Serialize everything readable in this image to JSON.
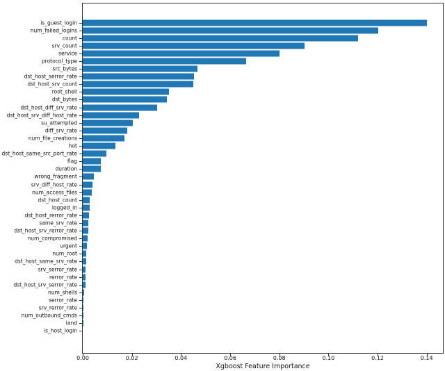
{
  "figure": {
    "background": "#ffffff",
    "bar_color": "#1f77b4",
    "axis_color": "#333333"
  },
  "chart_data": {
    "type": "bar",
    "orientation": "horizontal",
    "title": "",
    "xlabel": "Xgboost Feature Importance",
    "ylabel": "",
    "legend": null,
    "grid": false,
    "xlim": [
      0,
      0.1466
    ],
    "xticks": [
      {
        "label": "0.00",
        "value": 0.0
      },
      {
        "label": "0.02",
        "value": 0.02
      },
      {
        "label": "0.04",
        "value": 0.04
      },
      {
        "label": "0.06",
        "value": 0.06
      },
      {
        "label": "0.08",
        "value": 0.08
      },
      {
        "label": "0.10",
        "value": 0.1
      },
      {
        "label": "0.12",
        "value": 0.12
      },
      {
        "label": "0.14",
        "value": 0.14
      }
    ],
    "categories": [
      "is_guest_login",
      "num_failed_logins",
      "count",
      "srv_count",
      "service",
      "protocol_type",
      "src_bytes",
      "dst_host_serror_rate",
      "dst_host_srv_count",
      "root_shell",
      "dst_bytes",
      "dst_host_diff_srv_rate",
      "dst_host_srv_diff_host_rate",
      "su_attempted",
      "diff_srv_rate",
      "num_file_creations",
      "hot",
      "dst_host_same_src_port_rate",
      "flag",
      "duration",
      "wrong_fragment",
      "srv_diff_host_rate",
      "num_access_files",
      "dst_host_count",
      "logged_in",
      "dst_host_rerror_rate",
      "same_srv_rate",
      "dst_host_srv_rerror_rate",
      "num_compromised",
      "urgent",
      "num_root",
      "dst_host_same_srv_rate",
      "srv_serror_rate",
      "rerror_rate",
      "dst_host_srv_serror_rate",
      "num_shells",
      "serror_rate",
      "srv_rerror_rate",
      "num_outbound_cmds",
      "land",
      "is_host_login"
    ],
    "values": [
      0.14,
      0.1202,
      0.1122,
      0.0904,
      0.08,
      0.0664,
      0.0466,
      0.0453,
      0.0451,
      0.0351,
      0.0343,
      0.0302,
      0.0228,
      0.0203,
      0.0182,
      0.0171,
      0.0134,
      0.0097,
      0.0074,
      0.0074,
      0.0046,
      0.0041,
      0.0036,
      0.0028,
      0.0027,
      0.0025,
      0.0024,
      0.0022,
      0.0021,
      0.0017,
      0.0015,
      0.0014,
      0.0012,
      0.0011,
      0.001,
      0.0005,
      0.0004,
      0.0002,
      0.0001,
      5e-05,
      0.0
    ]
  }
}
